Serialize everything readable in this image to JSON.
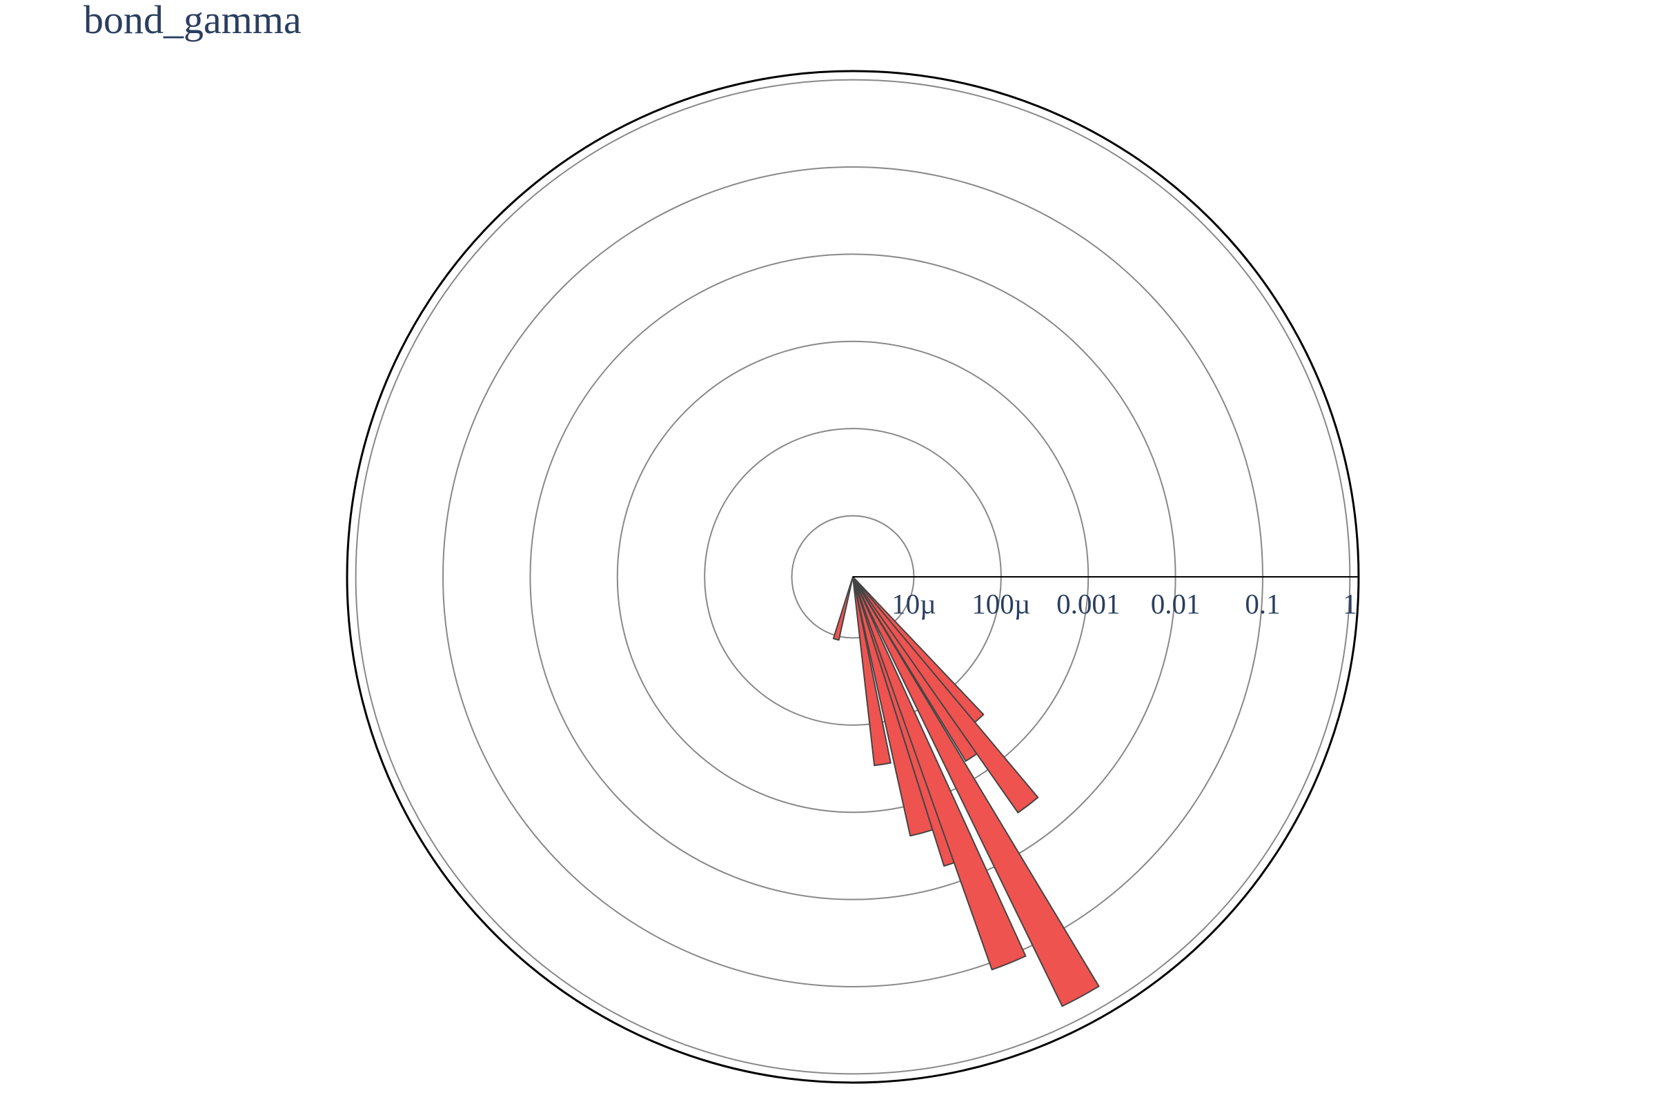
{
  "chart_data": {
    "type": "barpolar",
    "title": "bond_gamma",
    "radial_axis": {
      "scale": "log",
      "range": [
        -5.7,
        0.1
      ],
      "tickvals": [
        1e-05,
        0.0001,
        0.001,
        0.01,
        0.1,
        1
      ],
      "ticktext": [
        "10µ",
        "100µ",
        "0.001",
        "0.01",
        "0.1",
        "1"
      ],
      "angle_deg": 0,
      "grid": true
    },
    "angular_axis": {
      "direction": "clockwise",
      "rotation_deg": 0,
      "grid": false
    },
    "series": [
      {
        "bars": [
          {
            "theta_deg": 105.0,
            "width_deg": 5.0,
            "r": 1.1e-05
          },
          {
            "theta_deg": 81.0,
            "width_deg": 5.0,
            "r": 0.0003
          },
          {
            "theta_deg": 75.0,
            "width_deg": 5.0,
            "r": 0.0022
          },
          {
            "theta_deg": 70.0,
            "width_deg": 5.0,
            "r": 0.006
          },
          {
            "theta_deg": 56.0,
            "width_deg": 5.0,
            "r": 0.0006
          },
          {
            "theta_deg": 49.0,
            "width_deg": 5.0,
            "r": 0.0003
          },
          {
            "theta_deg": 52.5,
            "width_deg": 5.0,
            "r": 0.004
          },
          {
            "theta_deg": 68.0,
            "width_deg": 5.0,
            "r": 0.12
          },
          {
            "theta_deg": 61.5,
            "width_deg": 5.0,
            "r": 0.6
          }
        ]
      }
    ],
    "colors": {
      "bar_fill": "#ef5350",
      "bar_stroke": "#444444",
      "grid": "#888888",
      "outline": "#000000"
    }
  }
}
